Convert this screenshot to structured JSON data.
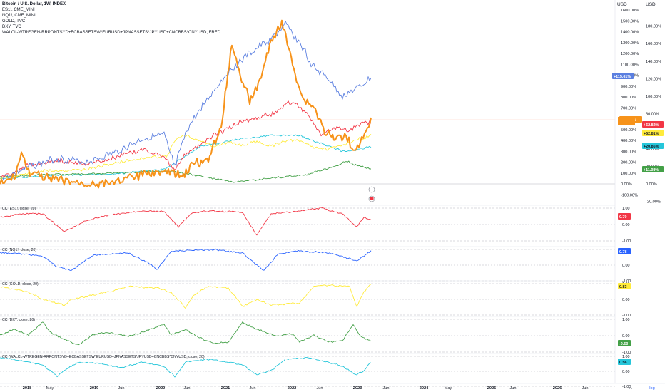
{
  "legend": {
    "title": "Bitcoin / U.S. Dollar, 1W, INDEX",
    "symbols": [
      "ES1!, CME_MINI",
      "NQ1!, CME_MINI",
      "GOLD, TVC",
      "DXY, TVC",
      "WALCL-WTREGEN-RRPONTSYD+ECBASSETSW*EURUSD+JPNASSETS*JPYUSD+CNCBBS*CNYUSD, FRED"
    ]
  },
  "axis_headers": {
    "left": "USD",
    "right": "USD"
  },
  "main_axis_left": [
    "1600.00%",
    "1500.00%",
    "1400.00%",
    "1300.00%",
    "1200.00%",
    "1100.00%",
    "1000.00%",
    "900.00%",
    "800.00%",
    "700.00%",
    "600.00%",
    "500.00%",
    "400.00%",
    "300.00%",
    "200.00%",
    "100.00%",
    "0.00%",
    "-100.00%"
  ],
  "main_axis_right": [
    "180.00%",
    "160.00%",
    "140.00%",
    "120.00%",
    "100.00%",
    "80.00%",
    "60.00%",
    "40.00%",
    "20.00%",
    "0.00%",
    "-20.00%"
  ],
  "badges": {
    "nq": "+115.61%",
    "btc": "+782.3%",
    "es": "+62.82%",
    "gold": "+52.81%",
    "wal": "+20.86%",
    "dxy": "+11.08%"
  },
  "panes": [
    {
      "label": "CC (ES1!, close, 20)",
      "value": "0.70",
      "color": "#f23645",
      "ticks": [
        "1.00",
        "0.00",
        "-1.00"
      ]
    },
    {
      "label": "CC (NQ1!, close, 20)",
      "value": "0.78",
      "color": "#2962ff",
      "ticks": [
        "1.00",
        "0.00",
        "-1.00"
      ]
    },
    {
      "label": "CC (GOLD, close, 20)",
      "value": "0.83",
      "color": "#ffeb3b",
      "ticks": [
        "1.00",
        "0.00",
        "-1.00"
      ]
    },
    {
      "label": "CC (DXY, close, 20)",
      "value": "-0.53",
      "color": "#43a047",
      "ticks": [
        "1.00",
        "0.00",
        "-1.00"
      ]
    },
    {
      "label": "CC (WALCL-WTREGEN-RRPONTSYD+ECBASSETSW*EURUSD+JPNASSETS*JPYUSD+CNCBBS*CNYUSD, close, 20)",
      "value": "0.56",
      "color": "#26c6da",
      "ticks": [
        "1.00",
        "0.00",
        "-1.00"
      ]
    }
  ],
  "time_axis": [
    "2018",
    "May",
    "2019",
    "Jun",
    "2020",
    "Jun",
    "2021",
    "Jun",
    "2022",
    "Jun",
    "2023",
    "Jun",
    "2024",
    "May",
    "2025",
    "Jun",
    "2026",
    "Jun"
  ],
  "footer": {
    "scale_a": "A",
    "scale_log": "log"
  },
  "colors": {
    "btc": "#f7931a",
    "es": "#f23645",
    "nq": "#5b7fe0",
    "gold": "#ffeb3b",
    "dxy": "#43a047",
    "wal": "#26c6da"
  }
}
